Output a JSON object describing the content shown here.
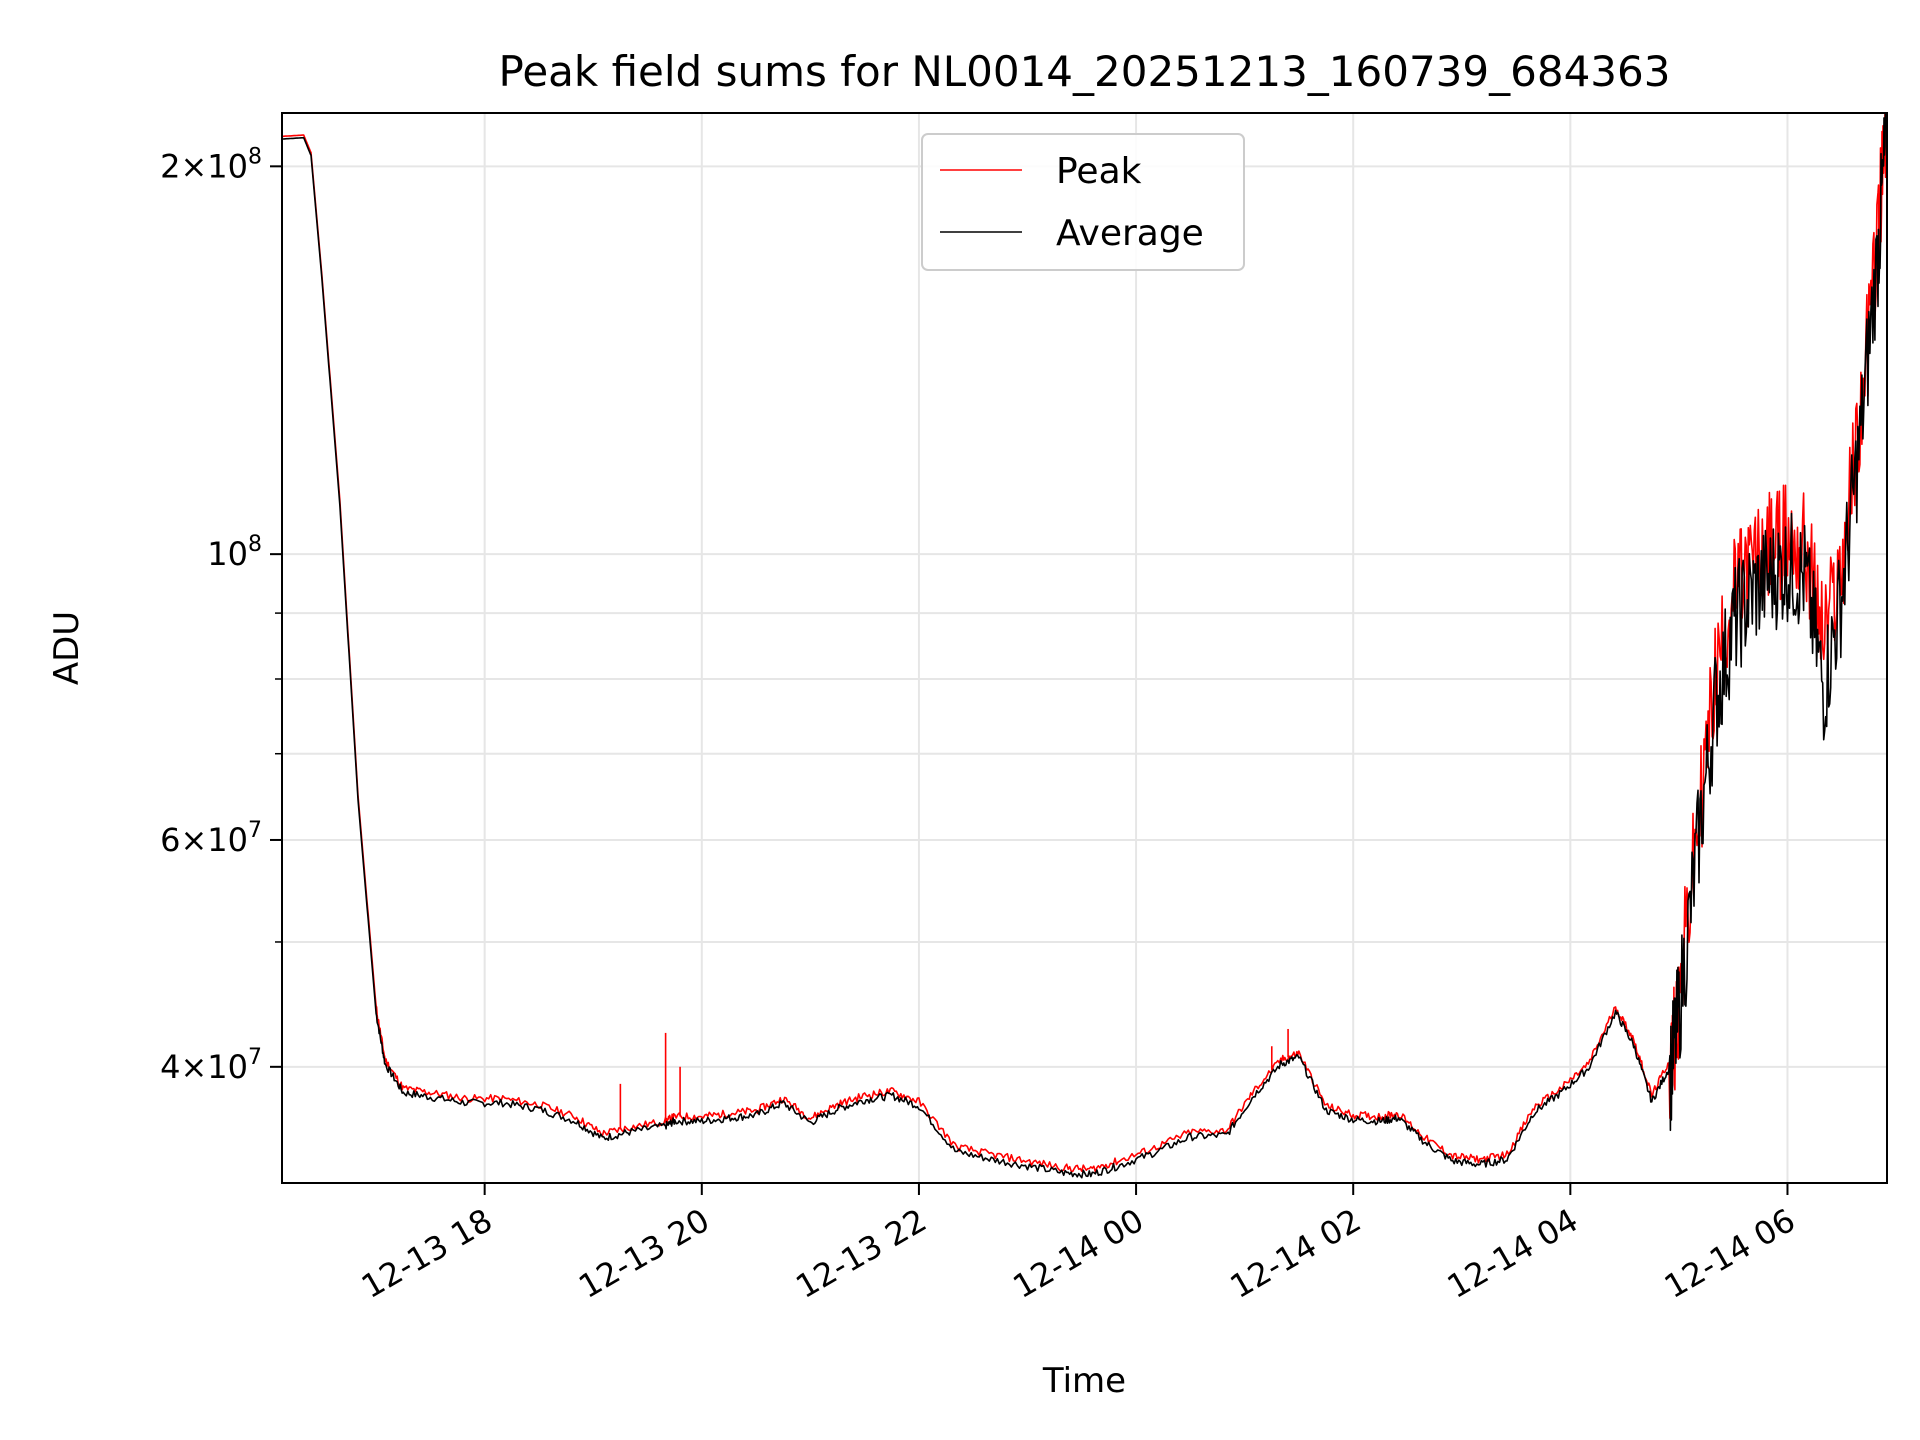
{
  "chart_data": {
    "type": "line",
    "title": "Peak field sums for NL0014_20251213_160739_684363",
    "xlabel": "Time",
    "ylabel": "ADU",
    "yscale": "log",
    "ylim": [
      32500000,
      220000000
    ],
    "xlim": [
      "2025-12-13 16:08",
      "2025-12-14 06:55"
    ],
    "grid": true,
    "legend_position": "top-center",
    "x_ticks": [
      {
        "label": "12-13 18",
        "t": "2025-12-13 18:00"
      },
      {
        "label": "12-13 20",
        "t": "2025-12-13 20:00"
      },
      {
        "label": "12-13 22",
        "t": "2025-12-13 22:00"
      },
      {
        "label": "12-14 00",
        "t": "2025-12-14 00:00"
      },
      {
        "label": "12-14 02",
        "t": "2025-12-14 02:00"
      },
      {
        "label": "12-14 04",
        "t": "2025-12-14 04:00"
      },
      {
        "label": "12-14 06",
        "t": "2025-12-14 06:00"
      }
    ],
    "y_ticks_major": [
      {
        "base": "2",
        "exp": "8",
        "value": 200000000
      },
      {
        "base": "",
        "exp": "8",
        "value": 100000000
      },
      {
        "base": "6",
        "exp": "7",
        "value": 60000000
      },
      {
        "base": "4",
        "exp": "7",
        "value": 40000000
      }
    ],
    "y_ticks_minor": [
      30000000,
      50000000,
      70000000,
      80000000,
      90000000
    ],
    "colors": {
      "Peak": "#ff0000",
      "Average": "#000000"
    },
    "series": [
      {
        "name": "Peak",
        "x": [
          "2025-12-13 16:08",
          "2025-12-13 16:20",
          "2025-12-13 16:24",
          "2025-12-13 16:30",
          "2025-12-13 16:40",
          "2025-12-13 16:50",
          "2025-12-13 17:00",
          "2025-12-13 17:05",
          "2025-12-13 17:15",
          "2025-12-13 17:30",
          "2025-12-13 17:50",
          "2025-12-13 18:10",
          "2025-12-13 18:30",
          "2025-12-13 18:50",
          "2025-12-13 19:05",
          "2025-12-13 19:20",
          "2025-12-13 19:40",
          "2025-12-13 19:45",
          "2025-12-13 20:00",
          "2025-12-13 20:15",
          "2025-12-13 20:30",
          "2025-12-13 20:45",
          "2025-12-13 21:00",
          "2025-12-13 21:15",
          "2025-12-13 21:30",
          "2025-12-13 21:45",
          "2025-12-13 22:00",
          "2025-12-13 22:20",
          "2025-12-13 22:40",
          "2025-12-13 23:00",
          "2025-12-13 23:20",
          "2025-12-13 23:35",
          "2025-12-13 23:50",
          "2025-12-14 00:10",
          "2025-12-14 00:30",
          "2025-12-14 00:50",
          "2025-12-14 01:05",
          "2025-12-14 01:20",
          "2025-12-14 01:30",
          "2025-12-14 01:45",
          "2025-12-14 02:00",
          "2025-12-14 02:15",
          "2025-12-14 02:25",
          "2025-12-14 02:40",
          "2025-12-14 02:55",
          "2025-12-14 03:10",
          "2025-12-14 03:25",
          "2025-12-14 03:40",
          "2025-12-14 03:55",
          "2025-12-14 04:10",
          "2025-12-14 04:25",
          "2025-12-14 04:35",
          "2025-12-14 04:45",
          "2025-12-14 04:55",
          "2025-12-14 05:00",
          "2025-12-14 05:10",
          "2025-12-14 05:20",
          "2025-12-14 05:30",
          "2025-12-14 05:40",
          "2025-12-14 05:50",
          "2025-12-14 06:00",
          "2025-12-14 06:10",
          "2025-12-14 06:20",
          "2025-12-14 06:30",
          "2025-12-14 06:40",
          "2025-12-14 06:50",
          "2025-12-14 06:55"
        ],
        "y": [
          211000000,
          211500000,
          205000000,
          165000000,
          110000000,
          65000000,
          44500000,
          40500000,
          38500000,
          38200000,
          37800000,
          37800000,
          37400000,
          36600000,
          35500000,
          35900000,
          36300000,
          36600000,
          36600000,
          36800000,
          37000000,
          37800000,
          36500000,
          37400000,
          38000000,
          38300000,
          37600000,
          34700000,
          34200000,
          33800000,
          33400000,
          33300000,
          33800000,
          34600000,
          35600000,
          35700000,
          38300000,
          40500000,
          41000000,
          37300000,
          36700000,
          36600000,
          36800000,
          35200000,
          34100000,
          33900000,
          34200000,
          37200000,
          38500000,
          40200000,
          44500000,
          42000000,
          38000000,
          40500000,
          46000000,
          62000000,
          82000000,
          95000000,
          100000000,
          103000000,
          105000000,
          103000000,
          88000000,
          100000000,
          130000000,
          180000000,
          222000000
        ]
      },
      {
        "name": "Average",
        "x": [
          "2025-12-13 16:08",
          "2025-12-13 16:20",
          "2025-12-13 16:24",
          "2025-12-13 16:30",
          "2025-12-13 16:40",
          "2025-12-13 16:50",
          "2025-12-13 17:00",
          "2025-12-13 17:05",
          "2025-12-13 17:15",
          "2025-12-13 17:30",
          "2025-12-13 17:50",
          "2025-12-13 18:10",
          "2025-12-13 18:30",
          "2025-12-13 18:50",
          "2025-12-13 19:05",
          "2025-12-13 19:20",
          "2025-12-13 19:40",
          "2025-12-13 19:45",
          "2025-12-13 20:00",
          "2025-12-13 20:15",
          "2025-12-13 20:30",
          "2025-12-13 20:45",
          "2025-12-13 21:00",
          "2025-12-13 21:15",
          "2025-12-13 21:30",
          "2025-12-13 21:45",
          "2025-12-13 22:00",
          "2025-12-13 22:20",
          "2025-12-13 22:40",
          "2025-12-13 23:00",
          "2025-12-13 23:20",
          "2025-12-13 23:35",
          "2025-12-13 23:50",
          "2025-12-14 00:10",
          "2025-12-14 00:30",
          "2025-12-14 00:50",
          "2025-12-14 01:05",
          "2025-12-14 01:20",
          "2025-12-14 01:30",
          "2025-12-14 01:45",
          "2025-12-14 02:00",
          "2025-12-14 02:15",
          "2025-12-14 02:25",
          "2025-12-14 02:40",
          "2025-12-14 02:55",
          "2025-12-14 03:10",
          "2025-12-14 03:25",
          "2025-12-14 03:40",
          "2025-12-14 03:55",
          "2025-12-14 04:10",
          "2025-12-14 04:25",
          "2025-12-14 04:35",
          "2025-12-14 04:45",
          "2025-12-14 04:55",
          "2025-12-14 05:00",
          "2025-12-14 05:10",
          "2025-12-14 05:20",
          "2025-12-14 05:30",
          "2025-12-14 05:40",
          "2025-12-14 05:50",
          "2025-12-14 06:00",
          "2025-12-14 06:10",
          "2025-12-14 06:20",
          "2025-12-14 06:30",
          "2025-12-14 06:40",
          "2025-12-14 06:50",
          "2025-12-14 06:55"
        ],
        "y": [
          210000000,
          210500000,
          204000000,
          164000000,
          109000000,
          64500000,
          44000000,
          40200000,
          38200000,
          37900000,
          37500000,
          37500000,
          37100000,
          36300000,
          35200000,
          35600000,
          36000000,
          36300000,
          36300000,
          36500000,
          36700000,
          37500000,
          36200000,
          37100000,
          37700000,
          38000000,
          37300000,
          34400000,
          33900000,
          33500000,
          33100000,
          33000000,
          33500000,
          34300000,
          35300000,
          35400000,
          38000000,
          40200000,
          40700000,
          37000000,
          36400000,
          36300000,
          36500000,
          34900000,
          33800000,
          33600000,
          33900000,
          36900000,
          38200000,
          39900000,
          44100000,
          41600000,
          37600000,
          40000000,
          45000000,
          60000000,
          78000000,
          90000000,
          95000000,
          98000000,
          100000000,
          98000000,
          80000000,
          95000000,
          125000000,
          175000000,
          220000000
        ]
      }
    ],
    "annotations": [
      {
        "series": "Peak",
        "t": "2025-12-13 19:15",
        "value": 38800000
      },
      {
        "series": "Peak",
        "t": "2025-12-13 19:40",
        "value": 42500000
      },
      {
        "series": "Peak",
        "t": "2025-12-13 19:48",
        "value": 40000000
      },
      {
        "series": "Peak",
        "t": "2025-12-14 01:15",
        "value": 41500000
      },
      {
        "series": "Peak",
        "t": "2025-12-14 01:24",
        "value": 42800000
      }
    ]
  }
}
